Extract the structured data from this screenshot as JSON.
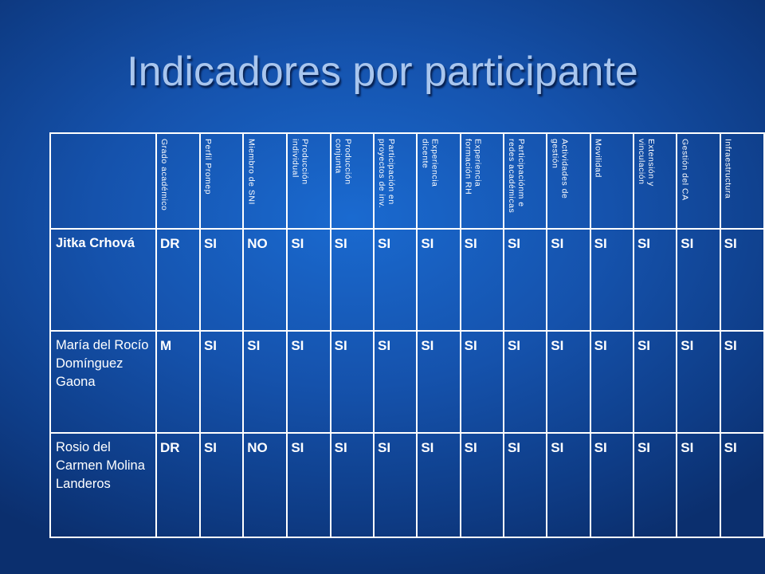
{
  "title": "Indicadores por participante",
  "table": {
    "headers": [
      "Grado académico",
      "Perfil Promep",
      "Miembro de SNI",
      "Producción\nindividual",
      "Producción\nconjunta",
      "Participación en\nproyectos de inv.",
      "Experiencia\ndicente",
      "Experiencia\nformación RH",
      "Participaciónm e\nredes académicas",
      "Actividades de\ngestión",
      "Movilidad",
      "Extensión y\nvinculación",
      "Gestión del CA",
      "Infraestructura"
    ],
    "rows": [
      {
        "name": "Jitka Crhová",
        "values": [
          "DR",
          "SI",
          "NO",
          "SI",
          "SI",
          "SI",
          "SI",
          "SI",
          "SI",
          "SI",
          "SI",
          "SI",
          "SI",
          "SI"
        ]
      },
      {
        "name": "María del Rocío Domínguez Gaona",
        "values": [
          "M",
          "SI",
          "SI",
          "SI",
          "SI",
          "SI",
          "SI",
          "SI",
          "SI",
          "SI",
          "SI",
          "SI",
          "SI",
          "SI"
        ]
      },
      {
        "name": "Rosio del Carmen Molina Landeros",
        "values": [
          "DR",
          "SI",
          "NO",
          "SI",
          "SI",
          "SI",
          "SI",
          "SI",
          "SI",
          "SI",
          "SI",
          "SI",
          "SI",
          "SI"
        ]
      }
    ]
  }
}
